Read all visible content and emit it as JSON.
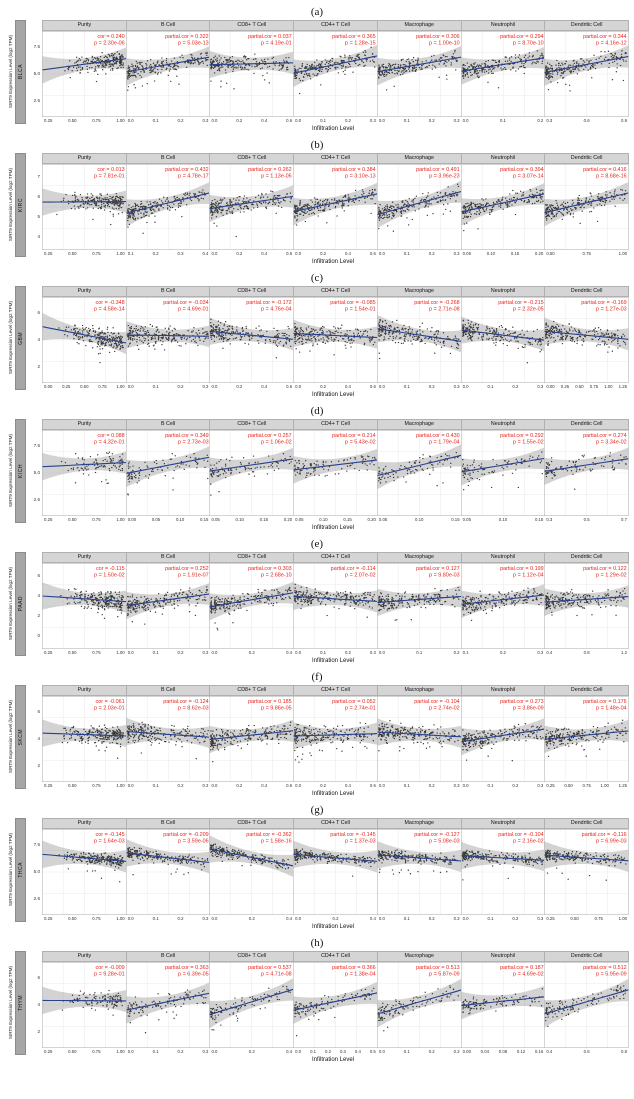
{
  "chart_data": {
    "type": "scatter",
    "description_title": "Correlation of gene expression with tumor immune infiltration (TIMER-style scatter grid)",
    "xlabel": "Infiltration Level",
    "colors": {
      "annotation": "#e8251f",
      "line": "#27418e",
      "band": "#8c8c8c",
      "point": "#1b1b1b",
      "strip_bg": "#a6a6a6",
      "title_bg": "#d5d5d5"
    },
    "cell_titles": [
      "Purity",
      "B Cell",
      "CD8+ T Cell",
      "CD4+ T Cell",
      "Macrophage",
      "Neutrophil",
      "Dendritic Cell"
    ],
    "panels": [
      {
        "label": "(a)",
        "strip": "BLCA",
        "ylabel": "SIRT9 Expression Level (log2 TPM)",
        "yticks": [
          "7.5",
          "5.0",
          "2.5"
        ],
        "n": 400,
        "ymid": 0.62,
        "yspread": 0.13,
        "cells": [
          {
            "title": "Purity",
            "ann1": "cor = 0.240",
            "ann2": "p = 2.30e-06",
            "r": 0.24,
            "xticks": [
              "0.25",
              "0.50",
              "0.75",
              "1.00"
            ]
          },
          {
            "title": "B Cell",
            "ann1": "partial.cor = 0.322",
            "ann2": "p = 5.03e-13",
            "r": 0.32,
            "xticks": [
              "0.0",
              "0.1",
              "0.2",
              "0.3"
            ]
          },
          {
            "title": "CD8+ T Cell",
            "ann1": "partial.cor = 0.037",
            "ann2": "p = 4.19e-01",
            "r": 0.04,
            "xticks": [
              "0.0",
              "0.2",
              "0.4",
              "0.6"
            ]
          },
          {
            "title": "CD4+ T Cell",
            "ann1": "partial.cor = 0.365",
            "ann2": "p = 1.28e-15",
            "r": 0.37,
            "xticks": [
              "0.0",
              "0.1",
              "0.2",
              "0.3"
            ]
          },
          {
            "title": "Macrophage",
            "ann1": "partial.cor = 0.306",
            "ann2": "p = 1.00e-10",
            "r": 0.31,
            "xticks": [
              "0.0",
              "0.1",
              "0.2",
              "0.3"
            ]
          },
          {
            "title": "Neutrophil",
            "ann1": "partial.cor = 0.294",
            "ann2": "p = 8.70e-10",
            "r": 0.29,
            "xticks": [
              "0.0",
              "0.1",
              "0.2"
            ]
          },
          {
            "title": "Dendritic Cell",
            "ann1": "partial.cor = 0.344",
            "ann2": "p = 4.16e-12",
            "r": 0.34,
            "xticks": [
              "0.3",
              "0.6",
              "0.9"
            ]
          }
        ]
      },
      {
        "label": "(b)",
        "strip": "KIRC",
        "ylabel": "SIRT9 Expression Level (log2 TPM)",
        "yticks": [
          "7",
          "6",
          "5",
          "4"
        ],
        "n": 320,
        "ymid": 0.56,
        "yspread": 0.13,
        "cells": [
          {
            "title": "Purity",
            "ann1": "cor = 0.013",
            "ann2": "p = 7.81e-01",
            "r": 0.01,
            "xticks": [
              "0.25",
              "0.50",
              "0.75",
              "1.00"
            ]
          },
          {
            "title": "B Cell",
            "ann1": "partial.cor = 0.432",
            "ann2": "p = 4.78e-17",
            "r": 0.43,
            "xticks": [
              "0.1",
              "0.2",
              "0.3",
              "0.4"
            ]
          },
          {
            "title": "CD8+ T Cell",
            "ann1": "partial.cor = 0.262",
            "ann2": "p = 1.13e-06",
            "r": 0.26,
            "xticks": [
              "0.0",
              "0.2",
              "0.4",
              "0.6"
            ]
          },
          {
            "title": "CD4+ T Cell",
            "ann1": "partial.cor = 0.384",
            "ann2": "p = 3.10e-13",
            "r": 0.38,
            "xticks": [
              "0.0",
              "0.2",
              "0.4",
              "0.6"
            ]
          },
          {
            "title": "Macrophage",
            "ann1": "partial.cor = 0.491",
            "ann2": "p = 3.96e-23",
            "r": 0.49,
            "xticks": [
              "0.0",
              "0.1",
              "0.2",
              "0.3"
            ]
          },
          {
            "title": "Neutrophil",
            "ann1": "partial.cor = 0.394",
            "ann2": "p = 3.07e-14",
            "r": 0.39,
            "xticks": [
              "0.05",
              "0.10",
              "0.15",
              "0.20"
            ]
          },
          {
            "title": "Dendritic Cell",
            "ann1": "partial.cor = 0.416",
            "ann2": "p = 8.68e-16",
            "r": 0.42,
            "xticks": [
              "0.50",
              "0.75",
              "1.00"
            ]
          }
        ]
      },
      {
        "label": "(c)",
        "strip": "GBM",
        "ylabel": "SIRT9 Expression Level (log2 TPM)",
        "yticks": [
          "6",
          "4",
          "2"
        ],
        "n": 420,
        "ymid": 0.55,
        "yspread": 0.16,
        "cells": [
          {
            "title": "Purity",
            "ann1": "cor = -0.348",
            "ann2": "p = 4.58e-14",
            "r": -0.35,
            "xticks": [
              "0.00",
              "0.25",
              "0.50",
              "0.75",
              "1.00"
            ]
          },
          {
            "title": "B Cell",
            "ann1": "partial.cor = -0.034",
            "ann2": "p = 4.69e-01",
            "r": -0.03,
            "xticks": [
              "0.0",
              "0.1",
              "0.2",
              "0.3"
            ]
          },
          {
            "title": "CD8+ T Cell",
            "ann1": "partial.cor = -0.172",
            "ann2": "p = 4.76e-04",
            "r": -0.17,
            "xticks": [
              "0.0",
              "0.2",
              "0.4",
              "0.6"
            ]
          },
          {
            "title": "CD4+ T Cell",
            "ann1": "partial.cor = -0.085",
            "ann2": "p = 1.54e-01",
            "r": -0.09,
            "xticks": [
              "0.0",
              "0.2",
              "0.4",
              "0.6"
            ]
          },
          {
            "title": "Macrophage",
            "ann1": "partial.cor = -0.268",
            "ann2": "p = 2.71e-08",
            "r": -0.27,
            "xticks": [
              "0.0",
              "0.1",
              "0.2",
              "0.3"
            ]
          },
          {
            "title": "Neutrophil",
            "ann1": "partial.cor = -0.215",
            "ann2": "p = 2.32e-05",
            "r": -0.22,
            "xticks": [
              "0.0",
              "0.1",
              "0.2",
              "0.3"
            ]
          },
          {
            "title": "Dendritic Cell",
            "ann1": "partial.cor = -0.169",
            "ann2": "p = 1.27e-03",
            "r": -0.17,
            "xticks": [
              "0.00",
              "0.25",
              "0.50",
              "0.75",
              "1.00",
              "1.25"
            ]
          }
        ]
      },
      {
        "label": "(d)",
        "strip": "KICH",
        "ylabel": "SIRT9 Expression Level (log2 TPM)",
        "yticks": [
          "7.5",
          "5.0",
          "2.5"
        ],
        "n": 100,
        "ymid": 0.6,
        "yspread": 0.16,
        "cells": [
          {
            "title": "Purity",
            "ann1": "cor = 0.088",
            "ann2": "p = 4.32e-01",
            "r": 0.09,
            "xticks": [
              "0.25",
              "0.50",
              "0.75",
              "1.00"
            ]
          },
          {
            "title": "B Cell",
            "ann1": "partial.cor = 0.349",
            "ann2": "p = 2.73e-03",
            "r": 0.35,
            "xticks": [
              "0.00",
              "0.05",
              "0.10",
              "0.15"
            ]
          },
          {
            "title": "CD8+ T Cell",
            "ann1": "partial.cor = 0.257",
            "ann2": "p = 1.06e-02",
            "r": 0.26,
            "xticks": [
              "0.05",
              "0.10",
              "0.15",
              "0.20"
            ]
          },
          {
            "title": "CD4+ T Cell",
            "ann1": "partial.cor = 0.214",
            "ann2": "p = 5.43e-02",
            "r": 0.21,
            "xticks": [
              "0.05",
              "0.10",
              "0.15",
              "0.20"
            ]
          },
          {
            "title": "Macrophage",
            "ann1": "partial.cor = 0.430",
            "ann2": "p = 1.79e-04",
            "r": 0.43,
            "xticks": [
              "0.05",
              "0.10",
              "0.15"
            ]
          },
          {
            "title": "Neutrophil",
            "ann1": "partial.cor = 0.292",
            "ann2": "p = 1.55e-02",
            "r": 0.29,
            "xticks": [
              "0.05",
              "0.10",
              "0.15"
            ]
          },
          {
            "title": "Dendritic Cell",
            "ann1": "partial.cor = 0.274",
            "ann2": "p = 3.34e-02",
            "r": 0.27,
            "xticks": [
              "0.3",
              "0.5",
              "0.7"
            ]
          }
        ]
      },
      {
        "label": "(e)",
        "strip": "PAAD",
        "ylabel": "SIRT9 Expression Level (log2 TPM)",
        "yticks": [
          "6",
          "4",
          "2",
          "0"
        ],
        "n": 420,
        "ymid": 0.58,
        "yspread": 0.15,
        "cells": [
          {
            "title": "Purity",
            "ann1": "cor = -0.115",
            "ann2": "p = 1.50e-02",
            "r": -0.12,
            "xticks": [
              "0.25",
              "0.50",
              "0.75",
              "1.00"
            ]
          },
          {
            "title": "B Cell",
            "ann1": "partial.cor = 0.252",
            "ann2": "p = 1.91e-07",
            "r": 0.25,
            "xticks": [
              "0.0",
              "0.1",
              "0.2",
              "0.3"
            ]
          },
          {
            "title": "CD8+ T Cell",
            "ann1": "partial.cor = 0.303",
            "ann2": "p = 2.68e-10",
            "r": 0.3,
            "xticks": [
              "0.0",
              "0.2",
              "0.4"
            ]
          },
          {
            "title": "CD4+ T Cell",
            "ann1": "partial.cor = -0.114",
            "ann2": "p = 2.07e-02",
            "r": -0.11,
            "xticks": [
              "0.0",
              "0.1",
              "0.2",
              "0.3"
            ]
          },
          {
            "title": "Macrophage",
            "ann1": "partial.cor = 0.127",
            "ann2": "p = 9.80e-03",
            "r": 0.13,
            "xticks": [
              "0.0",
              "0.1",
              "0.2"
            ]
          },
          {
            "title": "Neutrophil",
            "ann1": "partial.cor = 0.199",
            "ann2": "p = 1.12e-04",
            "r": 0.2,
            "xticks": [
              "0.1",
              "0.2",
              "0.3"
            ]
          },
          {
            "title": "Dendritic Cell",
            "ann1": "partial.cor = 0.122",
            "ann2": "p = 1.29e-02",
            "r": 0.12,
            "xticks": [
              "0.4",
              "0.8",
              "1.2"
            ]
          }
        ]
      },
      {
        "label": "(f)",
        "strip": "SKCM",
        "ylabel": "SIRT9 Expression Level (log2 TPM)",
        "yticks": [
          "6",
          "4",
          "2"
        ],
        "n": 460,
        "ymid": 0.55,
        "yspread": 0.15,
        "cells": [
          {
            "title": "Purity",
            "ann1": "cor = -0.061",
            "ann2": "p = 2.03e-01",
            "r": -0.06,
            "xticks": [
              "0.25",
              "0.50",
              "0.75",
              "1.00"
            ]
          },
          {
            "title": "B Cell",
            "ann1": "partial.cor = -0.124",
            "ann2": "p = 8.62e-03",
            "r": -0.12,
            "xticks": [
              "0.0",
              "0.1",
              "0.2",
              "0.3"
            ]
          },
          {
            "title": "CD8+ T Cell",
            "ann1": "partial.cor = 0.185",
            "ann2": "p = 9.86e-05",
            "r": 0.19,
            "xticks": [
              "0.0",
              "0.2",
              "0.4",
              "0.6"
            ]
          },
          {
            "title": "CD4+ T Cell",
            "ann1": "partial.cor = 0.052",
            "ann2": "p = 2.74e-01",
            "r": 0.05,
            "xticks": [
              "0.0",
              "0.2",
              "0.4",
              "0.6"
            ]
          },
          {
            "title": "Macrophage",
            "ann1": "partial.cor = -0.104",
            "ann2": "p = 2.74e-02",
            "r": -0.1,
            "xticks": [
              "0.0",
              "0.1",
              "0.2",
              "0.3"
            ]
          },
          {
            "title": "Neutrophil",
            "ann1": "partial.cor = 0.273",
            "ann2": "p = 3.86e-09",
            "r": 0.27,
            "xticks": [
              "0.0",
              "0.1",
              "0.2",
              "0.3"
            ]
          },
          {
            "title": "Dendritic Cell",
            "ann1": "partial.cor = 0.176",
            "ann2": "p = 1.48e-04",
            "r": 0.18,
            "xticks": [
              "0.25",
              "0.50",
              "0.75",
              "1.00",
              "1.25"
            ]
          }
        ]
      },
      {
        "label": "(g)",
        "strip": "THCA",
        "ylabel": "SIRT9 Expression Level (log2 TPM)",
        "yticks": [
          "7.5",
          "5.0",
          "2.5"
        ],
        "n": 500,
        "ymid": 0.66,
        "yspread": 0.09,
        "cells": [
          {
            "title": "Purity",
            "ann1": "cor = -0.145",
            "ann2": "p = 1.64e-03",
            "r": -0.15,
            "xticks": [
              "0.25",
              "0.50",
              "0.75",
              "1.00"
            ]
          },
          {
            "title": "B Cell",
            "ann1": "partial.cor = -0.209",
            "ann2": "p = 3.59e-06",
            "r": -0.21,
            "xticks": [
              "0.0",
              "0.1",
              "0.2",
              "0.3"
            ]
          },
          {
            "title": "CD8+ T Cell",
            "ann1": "partial.cor = -0.362",
            "ann2": "p = 1.58e-16",
            "r": -0.36,
            "xticks": [
              "0.0",
              "0.2",
              "0.4"
            ]
          },
          {
            "title": "CD4+ T Cell",
            "ann1": "partial.cor = -0.145",
            "ann2": "p = 1.37e-03",
            "r": -0.15,
            "xticks": [
              "0.0",
              "0.2",
              "0.4"
            ]
          },
          {
            "title": "Macrophage",
            "ann1": "partial.cor = -0.127",
            "ann2": "p = 5.08e-03",
            "r": -0.13,
            "xticks": [
              "0.0",
              "0.1",
              "0.2",
              "0.3"
            ]
          },
          {
            "title": "Neutrophil",
            "ann1": "partial.cor = -0.104",
            "ann2": "p = 2.16e-02",
            "r": -0.1,
            "xticks": [
              "0.0",
              "0.1",
              "0.2",
              "0.3"
            ]
          },
          {
            "title": "Dendritic Cell",
            "ann1": "partial.cor = -0.116",
            "ann2": "p = 6.99e-03",
            "r": -0.12,
            "xticks": [
              "0.25",
              "0.50",
              "0.75",
              "1.00"
            ]
          }
        ]
      },
      {
        "label": "(h)",
        "strip": "THYM",
        "ylabel": "SIRT9 Expression Level (log2 TPM)",
        "yticks": [
          "6",
          "4",
          "2"
        ],
        "n": 118,
        "ymid": 0.55,
        "yspread": 0.14,
        "cells": [
          {
            "title": "Purity",
            "ann1": "cor = -0.009",
            "ann2": "p = 9.28e-01",
            "r": -0.01,
            "xticks": [
              "0.25",
              "0.50",
              "0.75",
              "1.00"
            ]
          },
          {
            "title": "B Cell",
            "ann1": "partial.cor = 0.363",
            "ann2": "p = 6.39e-05",
            "r": 0.36,
            "xticks": [
              "0.0",
              "0.1",
              "0.2",
              "0.3"
            ]
          },
          {
            "title": "CD8+ T Cell",
            "ann1": "partial.cor = 0.537",
            "ann2": "p = 4.71e-08",
            "r": 0.54,
            "xticks": [
              "0.0",
              "0.2",
              "0.4"
            ]
          },
          {
            "title": "CD4+ T Cell",
            "ann1": "partial.cor = 0.366",
            "ann2": "p = 1.38e-04",
            "r": 0.37,
            "xticks": [
              "0.0",
              "0.1",
              "0.2",
              "0.3",
              "0.4",
              "0.5"
            ]
          },
          {
            "title": "Macrophage",
            "ann1": "partial.cor = 0.513",
            "ann2": "p = 5.87e-09",
            "r": 0.51,
            "xticks": [
              "0.0",
              "0.1",
              "0.2",
              "0.3"
            ]
          },
          {
            "title": "Neutrophil",
            "ann1": "partial.cor = 0.187",
            "ann2": "p = 4.69e-02",
            "r": 0.19,
            "xticks": [
              "0.00",
              "0.04",
              "0.08",
              "0.12",
              "0.16"
            ]
          },
          {
            "title": "Dendritic Cell",
            "ann1": "partial.cor = 0.512",
            "ann2": "p = 5.95e-09",
            "r": 0.51,
            "xticks": [
              "0.4",
              "0.6",
              "0.8"
            ]
          }
        ]
      }
    ]
  }
}
